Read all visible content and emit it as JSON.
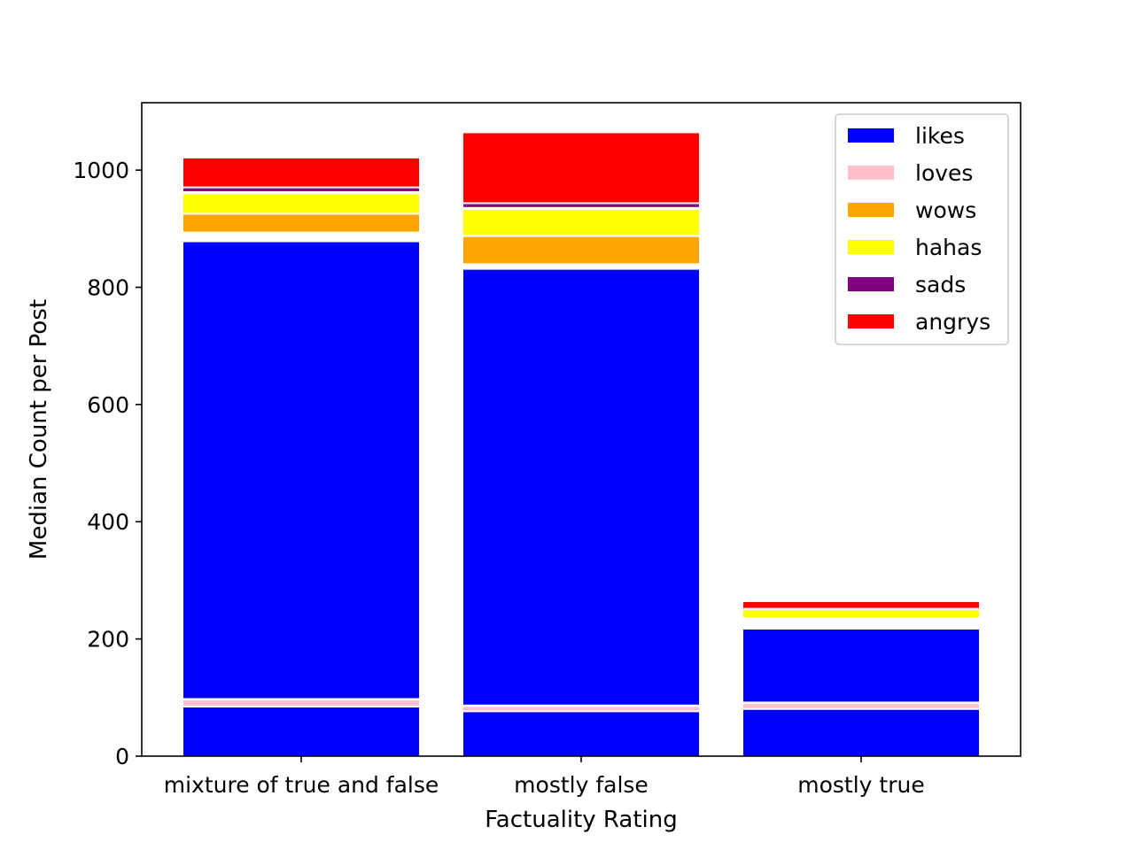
{
  "chart_data": {
    "type": "bar",
    "title": "",
    "xlabel": "Factuality Rating",
    "ylabel": "Median Count per Post",
    "ylim": [
      0,
      1115
    ],
    "yticks": [
      0,
      200,
      400,
      600,
      800,
      1000
    ],
    "grid": false,
    "legend_position": "top-right",
    "categories": [
      "mixture of true and false",
      "mostly false",
      "mostly true"
    ],
    "series": [
      {
        "name": "likes",
        "color": "#0000ff"
      },
      {
        "name": "loves",
        "color": "#ffc0cb"
      },
      {
        "name": "wows",
        "color": "#ffa500"
      },
      {
        "name": "hahas",
        "color": "#ffff00"
      },
      {
        "name": "sads",
        "color": "#800080"
      },
      {
        "name": "angrys",
        "color": "#ff0000"
      }
    ],
    "segments": [
      [
        {
          "series": "likes",
          "bottom": 0,
          "top": 83
        },
        {
          "series": "loves",
          "bottom": 86,
          "top": 95
        },
        {
          "series": "likes",
          "bottom": 99,
          "top": 877
        },
        {
          "series": "wows",
          "bottom": 895,
          "top": 924
        },
        {
          "series": "hahas",
          "bottom": 927,
          "top": 959
        },
        {
          "series": "sads",
          "bottom": 964,
          "top": 969
        },
        {
          "series": "angrys",
          "bottom": 972,
          "top": 1020
        }
      ],
      [
        {
          "series": "likes",
          "bottom": 0,
          "top": 75
        },
        {
          "series": "loves",
          "bottom": 78,
          "top": 84
        },
        {
          "series": "likes",
          "bottom": 88,
          "top": 830
        },
        {
          "series": "wows",
          "bottom": 841,
          "top": 886
        },
        {
          "series": "hahas",
          "bottom": 890,
          "top": 932
        },
        {
          "series": "sads",
          "bottom": 937,
          "top": 942
        },
        {
          "series": "angrys",
          "bottom": 945,
          "top": 1063
        }
      ],
      [
        {
          "series": "likes",
          "bottom": 0,
          "top": 79
        },
        {
          "series": "loves",
          "bottom": 82,
          "top": 89
        },
        {
          "series": "likes",
          "bottom": 93,
          "top": 216
        },
        {
          "series": "hahas",
          "bottom": 237,
          "top": 249
        },
        {
          "series": "angrys",
          "bottom": 253,
          "top": 263
        }
      ]
    ]
  }
}
